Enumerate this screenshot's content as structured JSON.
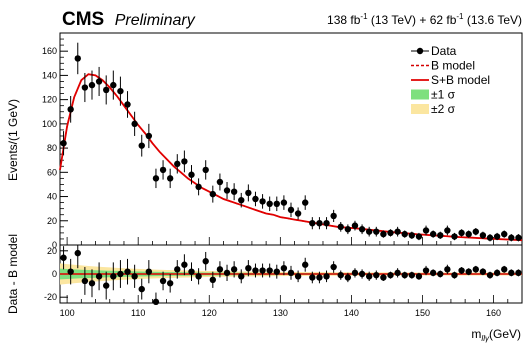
{
  "header": {
    "experiment": "CMS",
    "status": "Preliminary",
    "lumi_a": "138 fb",
    "lumi_a_exp": "-1",
    "lumi_a_energy": " (13 TeV) + 62 fb",
    "lumi_b_exp": "-1",
    "lumi_b_energy": " (13.6 TeV)"
  },
  "chart_data": [
    {
      "type": "scatter",
      "panel": "main",
      "ylabel": "Events/(1 GeV)",
      "xlim": [
        99,
        164
      ],
      "ylim": [
        0,
        175
      ],
      "yticks": [
        0,
        20,
        40,
        60,
        80,
        100,
        120,
        140,
        160
      ],
      "legend": {
        "placement": "top-right",
        "entries": [
          {
            "label": "Data",
            "style": "marker"
          },
          {
            "label": "B model",
            "style": "dashed",
            "color": "#d40000"
          },
          {
            "label": "S+B model",
            "style": "line",
            "color": "#e00000"
          },
          {
            "label": "±1 σ",
            "style": "band",
            "color": "#7ee07e"
          },
          {
            "label": "±2 σ",
            "style": "band",
            "color": "#fbe6a0"
          }
        ]
      },
      "series": [
        {
          "name": "Data",
          "x": [
            99.5,
            100.5,
            101.5,
            102.5,
            103.5,
            104.5,
            105.5,
            106.5,
            107.5,
            108.5,
            109.5,
            110.5,
            111.5,
            112.5,
            113.5,
            114.5,
            115.5,
            116.5,
            117.5,
            118.5,
            119.5,
            120.5,
            121.5,
            122.5,
            123.5,
            124.5,
            125.5,
            126.5,
            127.5,
            128.5,
            129.5,
            130.5,
            131.5,
            132.5,
            133.5,
            134.5,
            135.5,
            136.5,
            137.5,
            138.5,
            139.5,
            140.5,
            141.5,
            142.5,
            143.5,
            144.5,
            145.5,
            146.5,
            147.5,
            148.5,
            149.5,
            150.5,
            151.5,
            152.5,
            153.5,
            154.5,
            155.5,
            156.5,
            157.5,
            158.5,
            159.5,
            160.5,
            161.5,
            162.5,
            163.5
          ],
          "y": [
            84,
            112,
            154,
            130,
            132,
            135,
            128,
            132,
            127,
            116,
            100,
            82,
            90,
            55,
            62,
            55,
            67,
            69,
            58,
            48,
            62,
            42,
            52,
            45,
            44,
            37,
            43,
            38,
            36,
            34,
            34,
            35,
            29,
            26,
            35,
            18,
            18,
            18,
            24,
            15,
            13,
            16,
            13,
            11,
            11,
            9,
            10,
            11,
            9,
            8,
            7,
            12,
            9,
            8,
            12,
            7,
            10,
            9,
            11,
            8,
            6,
            7,
            9,
            6,
            6
          ],
          "err": [
            10,
            11,
            13,
            12,
            12,
            12,
            12,
            12,
            12,
            11,
            10,
            9,
            10,
            8,
            8,
            8,
            8,
            9,
            8,
            7,
            8,
            7,
            7,
            7,
            7,
            6,
            7,
            6,
            6,
            6,
            6,
            6,
            6,
            5,
            6,
            5,
            5,
            5,
            5,
            4,
            4,
            4,
            4,
            4,
            4,
            3,
            3,
            4,
            3,
            3,
            3,
            4,
            3,
            3,
            4,
            3,
            3,
            3,
            3,
            3,
            3,
            3,
            3,
            3,
            3
          ]
        },
        {
          "name": "S+B model",
          "x": [
            99,
            100,
            101,
            102,
            103,
            104,
            105,
            106,
            107,
            108,
            109,
            110,
            111,
            112,
            113,
            114,
            115,
            116,
            117,
            118,
            119,
            120,
            121,
            122,
            123,
            124,
            125,
            126,
            127,
            128,
            129,
            130,
            131,
            132,
            133,
            134,
            135,
            136,
            137,
            138,
            139,
            140,
            141,
            142,
            143,
            144,
            145,
            146,
            147,
            148,
            149,
            150,
            151,
            152,
            153,
            154,
            155,
            156,
            157,
            158,
            159,
            160,
            161,
            162,
            163,
            164
          ],
          "y": [
            62,
            98,
            122,
            136,
            141,
            140,
            136,
            130,
            123,
            115,
            107,
            99,
            92,
            84,
            77,
            71,
            65,
            60,
            55,
            51,
            47,
            44,
            41,
            38,
            36,
            34,
            32,
            30,
            28,
            26,
            25,
            23,
            22,
            21,
            20,
            19,
            18,
            17,
            16,
            15,
            14.5,
            14,
            13.5,
            13,
            12.3,
            11.7,
            11.1,
            10.5,
            10,
            9.5,
            9,
            8.6,
            8.2,
            7.8,
            7.4,
            7,
            6.6,
            6.3,
            6,
            5.7,
            5.4,
            5.1,
            4.8,
            4.5,
            4.2,
            4
          ]
        }
      ]
    },
    {
      "type": "scatter",
      "panel": "ratio",
      "xlabel": "m",
      "xlabel_sub": "llγ",
      "xlabel_unit": "(GeV)",
      "ylabel": "Data - B model",
      "xlim": [
        99,
        164
      ],
      "ylim": [
        -25,
        25
      ],
      "yticks": [
        -20,
        0,
        20
      ],
      "xticks": [
        100,
        110,
        120,
        130,
        140,
        150,
        160
      ],
      "series": [
        {
          "name": "Data",
          "x": [
            99.5,
            100.5,
            101.5,
            102.5,
            103.5,
            104.5,
            105.5,
            106.5,
            107.5,
            108.5,
            109.5,
            110.5,
            111.5,
            112.5,
            113.5,
            114.5,
            115.5,
            116.5,
            117.5,
            118.5,
            119.5,
            120.5,
            121.5,
            122.5,
            123.5,
            124.5,
            125.5,
            126.5,
            127.5,
            128.5,
            129.5,
            130.5,
            131.5,
            132.5,
            133.5,
            134.5,
            135.5,
            136.5,
            137.5,
            138.5,
            139.5,
            140.5,
            141.5,
            142.5,
            143.5,
            144.5,
            145.5,
            146.5,
            147.5,
            148.5,
            149.5,
            150.5,
            151.5,
            152.5,
            153.5,
            154.5,
            155.5,
            156.5,
            157.5,
            158.5,
            159.5,
            160.5,
            161.5,
            162.5,
            163.5
          ],
          "y": [
            14,
            2,
            18,
            -6,
            -8,
            -2,
            -10,
            -2,
            0,
            2,
            -2,
            -13,
            2,
            -24,
            -6,
            -8,
            4,
            8,
            2,
            -2,
            11,
            -5,
            4,
            1,
            4,
            -2,
            5,
            3,
            3,
            3,
            2,
            5,
            1,
            -2,
            8,
            -3,
            -3,
            -2,
            6,
            -1,
            -3,
            1,
            0,
            -2,
            -1,
            -3,
            -1,
            1,
            -1,
            -1,
            -2,
            3,
            1,
            0,
            4,
            -1,
            3,
            2,
            4,
            2,
            -1,
            1,
            4,
            1,
            1
          ],
          "err": [
            10,
            11,
            13,
            12,
            12,
            12,
            12,
            12,
            12,
            11,
            10,
            9,
            10,
            8,
            8,
            8,
            8,
            9,
            8,
            7,
            8,
            7,
            7,
            7,
            7,
            6,
            7,
            6,
            6,
            6,
            6,
            6,
            6,
            5,
            6,
            5,
            5,
            5,
            5,
            4,
            4,
            4,
            4,
            4,
            4,
            3,
            3,
            4,
            3,
            3,
            3,
            4,
            3,
            3,
            4,
            3,
            3,
            3,
            3,
            3,
            3,
            3,
            3,
            3,
            3
          ]
        }
      ]
    }
  ]
}
